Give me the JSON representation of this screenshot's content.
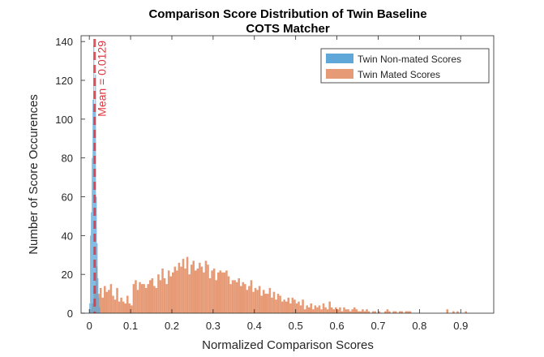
{
  "chart_data": {
    "type": "bar",
    "title": [
      "Comparison Score Distribution of Twin Baseline",
      "COTS Matcher"
    ],
    "xlabel": "Normalized Comparison Scores",
    "ylabel": "Number of Score Occurences",
    "xlim": [
      -0.02,
      0.98
    ],
    "ylim": [
      0,
      143
    ],
    "xticks": [
      "0",
      "0.1",
      "0.2",
      "0.3",
      "0.4",
      "0.5",
      "0.6",
      "0.7",
      "0.8",
      "0.9"
    ],
    "yticks": [
      "0",
      "20",
      "40",
      "60",
      "80",
      "100",
      "120",
      "140"
    ],
    "grid": false,
    "legend_position": "top-right",
    "series": [
      {
        "name": "Twin Non-mated Scores",
        "color": "#5fa7d8",
        "bin_width": 0.002,
        "bin_start": 0.0,
        "values": [
          5,
          40,
          52,
          80,
          110,
          138,
          105,
          123,
          60,
          36,
          18,
          8,
          3
        ]
      },
      {
        "name": "Twin Mated Scores",
        "color": "#e69a75",
        "bin_width": 0.005,
        "bin_start": 0.0,
        "values": [
          2,
          5,
          12,
          24,
          10,
          13,
          8,
          14,
          11,
          12,
          15,
          9,
          7,
          13,
          6,
          8,
          6,
          5,
          9,
          5,
          4,
          15,
          17,
          12,
          16,
          15,
          15,
          13,
          15,
          17,
          18,
          14,
          13,
          20,
          17,
          23,
          18,
          15,
          22,
          19,
          21,
          24,
          22,
          26,
          24,
          28,
          23,
          29,
          20,
          25,
          27,
          22,
          23,
          26,
          24,
          21,
          27,
          25,
          18,
          22,
          23,
          17,
          21,
          22,
          21,
          21,
          22,
          19,
          15,
          17,
          17,
          16,
          18,
          14,
          16,
          15,
          12,
          14,
          17,
          11,
          13,
          12,
          14,
          9,
          12,
          10,
          10,
          13,
          8,
          11,
          7,
          10,
          9,
          6,
          7,
          6,
          8,
          5,
          8,
          7,
          5,
          6,
          4,
          7,
          2,
          4,
          3,
          5,
          2,
          4,
          3,
          4,
          2,
          5,
          3,
          2,
          6,
          3,
          2,
          3,
          2,
          3,
          1,
          3,
          2,
          2,
          1,
          2,
          3,
          2,
          1,
          1,
          2,
          1,
          2,
          1,
          0,
          1,
          1,
          0,
          1,
          0,
          0,
          1,
          2,
          1,
          0,
          1,
          1,
          0,
          1,
          1,
          0,
          1,
          1,
          1,
          0,
          0,
          0,
          0,
          0,
          0,
          0,
          0,
          0,
          0,
          0,
          0,
          0,
          0,
          0,
          0,
          0,
          2,
          0,
          0,
          1,
          0,
          1,
          0,
          0,
          0,
          1,
          0,
          0,
          0,
          0,
          0,
          0
        ]
      }
    ],
    "annotations": [
      {
        "type": "vline",
        "x": 0.0129,
        "color": "#e0343c",
        "style": "dashed",
        "label": "Mean = 0.0129"
      }
    ]
  }
}
